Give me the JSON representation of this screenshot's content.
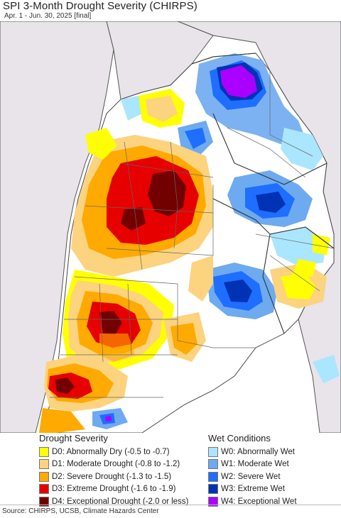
{
  "header": {
    "title": "SPI 3-Month Drought Severity (CHIRPS)",
    "subtitle": "Apr. 1 - Jun. 30, 2025 [final]"
  },
  "map": {
    "ocean_color": "#ffffff",
    "land_color": "#ffffff",
    "outside_color": "#e8e4ea",
    "border_color": "#555555"
  },
  "legend": {
    "drought": {
      "heading": "Drought Severity",
      "items": [
        {
          "label": "D0: Abnormally Dry (-0.5 to -0.7)",
          "color": "#ffff00"
        },
        {
          "label": "D1: Moderate Drought (-0.8 to -1.2)",
          "color": "#fcd37f"
        },
        {
          "label": "D2: Severe Drought (-1.3 to -1.5)",
          "color": "#ffaa00"
        },
        {
          "label": "D3: Extreme Drought (-1.6 to -1.9)",
          "color": "#e60000"
        },
        {
          "label": "D4: Exceptional Drought (-2.0 or less)",
          "color": "#730000"
        }
      ]
    },
    "wet": {
      "heading": "Wet Conditions",
      "items": [
        {
          "label": "W0: Abnormally Wet",
          "color": "#aae6ff"
        },
        {
          "label": "W1: Moderate Wet",
          "color": "#6eaaf0"
        },
        {
          "label": "W2: Severe Wet",
          "color": "#1e6eff"
        },
        {
          "label": "W3: Extreme Wet",
          "color": "#0032b4"
        },
        {
          "label": "W4: Exceptional Wet",
          "color": "#aa00ff"
        }
      ]
    }
  },
  "footer": {
    "source": "Source: CHIRPS, UCSB, Climate Hazards Center"
  }
}
